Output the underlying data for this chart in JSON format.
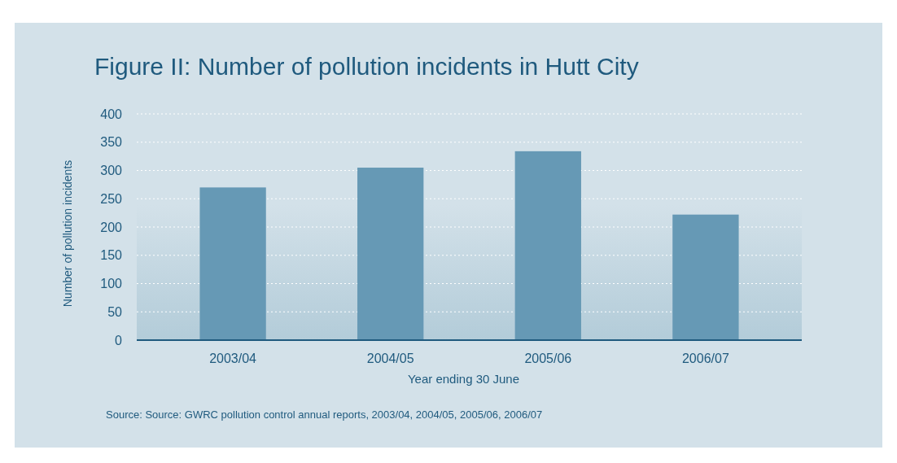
{
  "chart_data": {
    "type": "bar",
    "title": "Figure II: Number of pollution incidents in Hutt City",
    "categories": [
      "2003/04",
      "2004/05",
      "2005/06",
      "2006/07"
    ],
    "values": [
      270,
      305,
      334,
      222
    ],
    "color": "#6699b5",
    "ylim": [
      0,
      400
    ],
    "yticks": [
      0,
      50,
      100,
      150,
      200,
      250,
      300,
      350,
      400
    ],
    "grid": "y",
    "xlabel": "Year ending 30 June",
    "ylabel": "Number of pollution incidents",
    "annotations": [
      "Source: Source: GWRC pollution control annual reports, 2003/04, 2004/05, 2005/06, 2006/07"
    ]
  }
}
